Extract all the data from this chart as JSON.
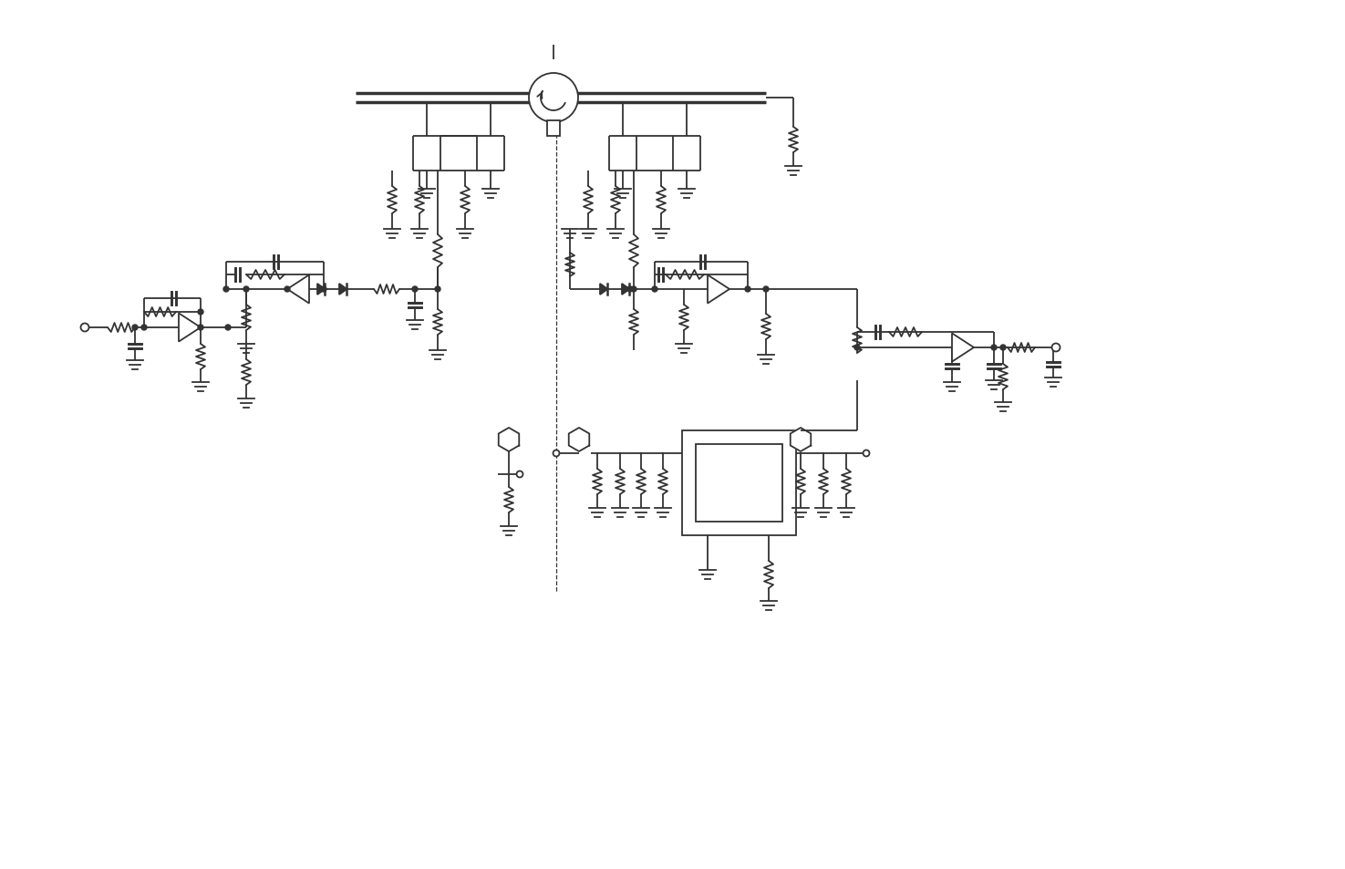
{
  "bg_color": "#ffffff",
  "line_color": "#333333",
  "line_width": 1.3,
  "thick_lw": 2.5,
  "fig_width": 14.75,
  "fig_height": 9.54,
  "dpi": 100
}
